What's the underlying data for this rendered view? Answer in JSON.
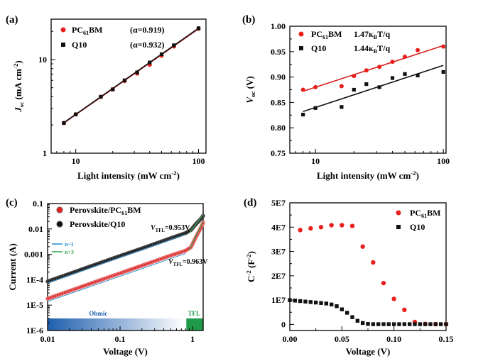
{
  "figure": {
    "colors": {
      "red": "#e8201c",
      "black": "#111111",
      "pc61bm_line": "#d62020",
      "q10_line": "#111111"
    }
  },
  "chart_data": [
    {
      "panel": "(a)",
      "type": "scatter",
      "x_scale": "log",
      "y_scale": "log",
      "xlabel": "Light intensity (mW cm",
      "xlabel_sup": "-2",
      "xlabel_end": ")",
      "ylabel": "J",
      "ylabel_sub": "sc",
      "ylabel_unit": "(mA cm",
      "ylabel_sup": "-2",
      "ylabel_end": ")",
      "xlim": [
        6.3,
        115
      ],
      "ylim": [
        1,
        27
      ],
      "x_ticks": [
        10,
        100
      ],
      "x_tick_labels": [
        "10",
        "100"
      ],
      "y_ticks": [
        1,
        10
      ],
      "y_tick_labels": [
        "1",
        "10"
      ],
      "legend": [
        {
          "name": "PC61BM",
          "name_main": "PC",
          "name_sub": "61",
          "name_end": "BM",
          "marker": "circle",
          "color": "#e8201c",
          "note": "(α=0.919)"
        },
        {
          "name": "Q10",
          "name_main": "Q10",
          "name_sub": "",
          "name_end": "",
          "marker": "square",
          "color": "#111111",
          "note": "(α=0.932)"
        }
      ],
      "legend_position": "top-left",
      "series": [
        {
          "name": "PC61BM",
          "x": [
            8,
            10,
            16,
            20,
            25,
            31.6,
            40,
            50,
            63,
            100
          ],
          "y": [
            2.1,
            2.6,
            4.0,
            4.8,
            5.9,
            7.1,
            8.8,
            11.0,
            13.8,
            21.3
          ]
        },
        {
          "name": "Q10",
          "x": [
            8,
            10,
            16,
            20,
            25,
            31.6,
            40,
            50,
            63,
            100
          ],
          "y": [
            2.1,
            2.6,
            4.0,
            4.8,
            6.0,
            7.3,
            9.3,
            11.4,
            14.2,
            21.6
          ]
        }
      ],
      "fits": [
        {
          "series": "PC61BM",
          "x": [
            8,
            100
          ],
          "y": [
            2.1,
            21.3
          ]
        },
        {
          "series": "Q10",
          "x": [
            8,
            100
          ],
          "y": [
            2.12,
            21.6
          ]
        }
      ]
    },
    {
      "panel": "(b)",
      "type": "scatter",
      "x_scale": "log",
      "y_scale": "linear",
      "xlabel": "Light intensity (mW cm",
      "xlabel_sup": "-2",
      "xlabel_end": ")",
      "ylabel": "V",
      "ylabel_sub": "oc",
      "ylabel_unit": "(V)",
      "xlim": [
        6.3,
        105
      ],
      "ylim": [
        0.75,
        1.0
      ],
      "x_ticks": [
        10,
        100
      ],
      "x_tick_labels": [
        "10",
        "100"
      ],
      "y_ticks": [
        0.75,
        0.8,
        0.85,
        0.9,
        0.95,
        1.0
      ],
      "y_tick_labels": [
        "0.75",
        "0.80",
        "0.85",
        "0.90",
        "0.95",
        "1.00"
      ],
      "legend": [
        {
          "name": "PC61BM",
          "name_main": "PC",
          "name_sub": "61",
          "name_end": "BM",
          "marker": "circle",
          "color": "#e8201c",
          "note_main": "1.47κ",
          "note_sub": "B",
          "note_end": "T/q"
        },
        {
          "name": "Q10",
          "name_main": "Q10",
          "name_sub": "",
          "name_end": "",
          "marker": "square",
          "color": "#111111",
          "note_main": "1.44κ",
          "note_sub": "B",
          "note_end": "T/q"
        }
      ],
      "legend_position": "top-left",
      "series": [
        {
          "name": "PC61BM",
          "x": [
            8,
            10,
            16,
            20,
            25,
            31.6,
            40,
            50,
            63,
            100
          ],
          "y": [
            0.875,
            0.88,
            0.882,
            0.902,
            0.913,
            0.92,
            0.93,
            0.94,
            0.953,
            0.96
          ]
        },
        {
          "name": "Q10",
          "x": [
            8,
            10,
            16,
            20,
            25,
            31.6,
            40,
            50,
            63,
            100
          ],
          "y": [
            0.826,
            0.839,
            0.841,
            0.875,
            0.886,
            0.88,
            0.898,
            0.906,
            0.903,
            0.91
          ]
        }
      ],
      "fits": [
        {
          "series": "PC61BM",
          "x": [
            8,
            100
          ],
          "y": [
            0.872,
            0.962
          ]
        },
        {
          "series": "Q10",
          "x": [
            8,
            100
          ],
          "y": [
            0.832,
            0.923
          ]
        }
      ]
    },
    {
      "panel": "(c)",
      "type": "line",
      "x_scale": "log",
      "y_scale": "log",
      "xlabel": "Voltage (V)",
      "ylabel": "Current (A)",
      "xlim": [
        0.01,
        1.4
      ],
      "ylim": [
        1e-06,
        0.1
      ],
      "x_ticks": [
        0.01,
        0.1,
        1
      ],
      "x_tick_labels": [
        "0.01",
        "0.1",
        "1"
      ],
      "y_ticks": [
        1e-06,
        1e-05,
        0.0001,
        0.001,
        0.01,
        0.1
      ],
      "y_tick_labels": [
        "1E-6",
        "1E-5",
        "1E-4",
        "0.001",
        "0.01",
        "0.1"
      ],
      "legend": [
        {
          "name": "Perovskite/PC61BM",
          "name_main": "Perovskite/PC",
          "name_sub": "61",
          "name_end": "BM",
          "color": "#e8201c"
        },
        {
          "name": "Perovskite/Q10",
          "name_main": "Perovskite/Q10",
          "name_sub": "",
          "name_end": "",
          "color": "#111111"
        }
      ],
      "slope_legend": [
        {
          "name": "n~1",
          "color": "#2e8fd0"
        },
        {
          "name": "n>3",
          "color": "#3aa655"
        }
      ],
      "regions": [
        {
          "label": "Ohmic",
          "from": 0.01,
          "to": 0.78,
          "color": "#1f5fae"
        },
        {
          "label": "TFL",
          "from": 0.82,
          "to": 1.4,
          "color": "#1f9a4a"
        }
      ],
      "annotations": [
        {
          "text_main": "V",
          "text_sub": "TFL",
          "text_end": "=0.953V",
          "at": [
            0.953,
            0.009
          ]
        },
        {
          "text_main": "V",
          "text_sub": "TFL",
          "text_end": "=0.963V",
          "at": [
            0.963,
            0.0018
          ]
        }
      ],
      "series": [
        {
          "name": "Perovskite/Q10",
          "x": [
            0.01,
            0.02,
            0.05,
            0.1,
            0.2,
            0.5,
            0.8,
            0.95,
            1.1,
            1.3,
            1.4
          ],
          "y": [
            8.5e-05,
            0.00017,
            0.00043,
            0.00086,
            0.0017,
            0.0043,
            0.0069,
            0.009,
            0.015,
            0.025,
            0.033
          ]
        },
        {
          "name": "Perovskite/PC61BM",
          "x": [
            0.01,
            0.02,
            0.05,
            0.1,
            0.2,
            0.5,
            0.8,
            0.95,
            1.1,
            1.3,
            1.4
          ],
          "y": [
            1.8e-05,
            3.6e-05,
            9e-05,
            0.00018,
            0.00036,
            0.0009,
            0.0014,
            0.0019,
            0.0045,
            0.011,
            0.018
          ]
        }
      ]
    },
    {
      "panel": "(d)",
      "type": "scatter",
      "x_scale": "linear",
      "y_scale": "linear",
      "xlabel": "Voltage (V)",
      "ylabel": "C",
      "ylabel_sup": "-2",
      "ylabel_unit": "(F",
      "ylabel_unit_sup": "-2",
      "ylabel_end": ")",
      "xlim": [
        0,
        0.15
      ],
      "ylim": [
        -2500000.0,
        50000000.0
      ],
      "x_ticks": [
        0,
        0.05,
        0.1,
        0.15
      ],
      "x_tick_labels": [
        "0.00",
        "0.05",
        "0.10",
        "0.15"
      ],
      "y_ticks": [
        0,
        10000000.0,
        20000000.0,
        30000000.0,
        40000000.0,
        50000000.0
      ],
      "y_tick_labels": [
        "0",
        "1E7",
        "2E7",
        "3E7",
        "4E7",
        "5E7"
      ],
      "legend": [
        {
          "name": "PC61BM",
          "name_main": "PC",
          "name_sub": "61",
          "name_end": "BM",
          "marker": "circle",
          "color": "#e8201c"
        },
        {
          "name": "Q10",
          "name_main": "Q10",
          "name_sub": "",
          "name_end": "",
          "marker": "square",
          "color": "#111111"
        }
      ],
      "legend_position": "top-right",
      "series": [
        {
          "name": "PC61BM",
          "x": [
            0.01,
            0.02,
            0.03,
            0.04,
            0.05,
            0.06,
            0.07,
            0.08,
            0.09,
            0.1,
            0.11,
            0.12,
            0.13,
            0.14,
            0.15
          ],
          "y": [
            38800000.0,
            39500000.0,
            40000000.0,
            40800000.0,
            40800000.0,
            40500000.0,
            32000000.0,
            25500000.0,
            17000000.0,
            10500000.0,
            6000000.0,
            1000000.0,
            200000.0,
            100000.0,
            100000.0
          ]
        },
        {
          "name": "Q10",
          "x": [
            0.0,
            0.005,
            0.01,
            0.015,
            0.02,
            0.025,
            0.03,
            0.035,
            0.04,
            0.045,
            0.05,
            0.055,
            0.06,
            0.065,
            0.07,
            0.075,
            0.08,
            0.085,
            0.09,
            0.095,
            0.1,
            0.105,
            0.11,
            0.115,
            0.12,
            0.125,
            0.13,
            0.135,
            0.14,
            0.145,
            0.15
          ],
          "y": [
            10000000.0,
            9800000.0,
            9600000.0,
            9400000.0,
            9200000.0,
            9000000.0,
            8800000.0,
            8600000.0,
            8200000.0,
            7500000.0,
            6200000.0,
            4800000.0,
            3000000.0,
            1500000.0,
            600000.0,
            200000.0,
            100000.0,
            100000.0,
            100000.0,
            100000.0,
            100000.0,
            100000.0,
            100000.0,
            100000.0,
            100000.0,
            100000.0,
            100000.0,
            100000.0,
            100000.0,
            100000.0,
            100000.0
          ]
        }
      ]
    }
  ]
}
